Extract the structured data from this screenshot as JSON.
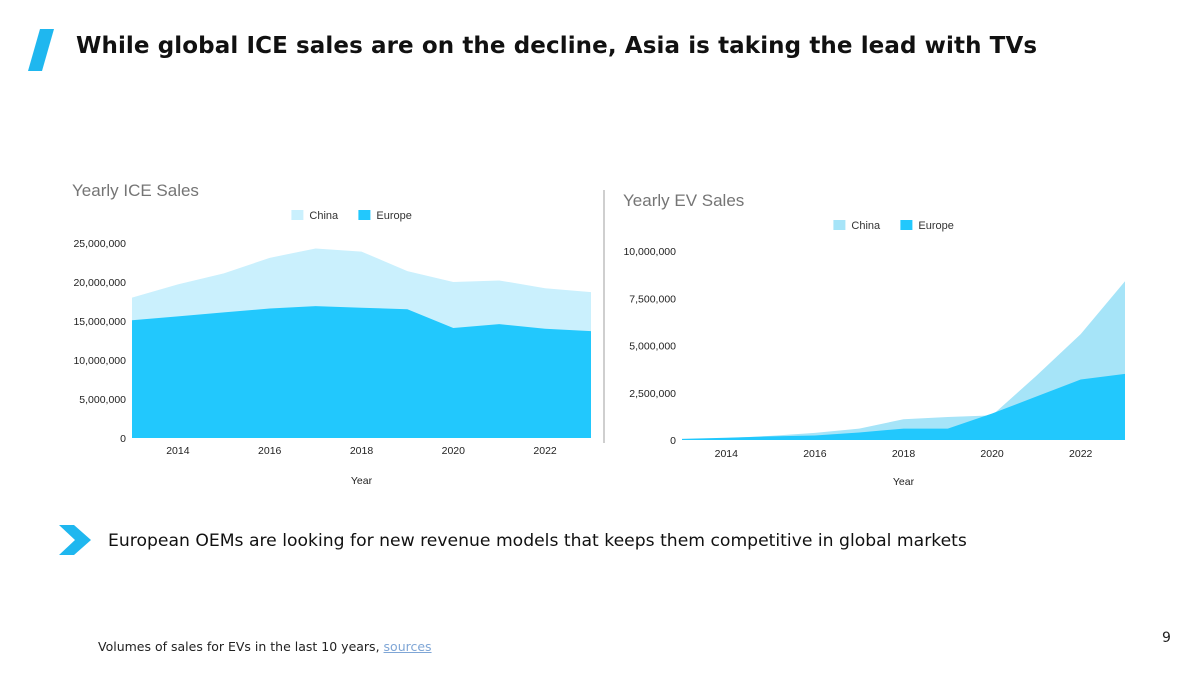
{
  "slide": {
    "title": "While global ICE sales are on the decline, Asia is taking the lead with TVs",
    "bullet": "European OEMs are looking for new revenue models that keeps them competitive in global markets",
    "footnote_text": "Volumes of sales for EVs in the last 10 years, ",
    "footnote_link": "sources",
    "page_number": "9",
    "accent_color": "#1fb7ef",
    "icons": {
      "title_mark": "slash-mark-icon",
      "bullet": "chevron-right-icon"
    }
  },
  "chart_data": [
    {
      "type": "area",
      "stacked": false,
      "title": "Yearly ICE Sales",
      "xlabel": "Year",
      "ylabel": "",
      "x": [
        2013,
        2014,
        2015,
        2016,
        2017,
        2018,
        2019,
        2020,
        2021,
        2022,
        2023
      ],
      "xticks": [
        "2014",
        "2016",
        "2018",
        "2020",
        "2022"
      ],
      "ylim": [
        0,
        25000000
      ],
      "yticks": [
        "0",
        "5,000,000",
        "10,000,000",
        "15,000,000",
        "20,000,000",
        "25,000,000"
      ],
      "legend_position": "top-center",
      "grid": false,
      "series": [
        {
          "name": "China",
          "color": "#caf0fd",
          "values": [
            18000000,
            19700000,
            21100000,
            23100000,
            24300000,
            23900000,
            21400000,
            20000000,
            20200000,
            19200000,
            18700000
          ]
        },
        {
          "name": "Europe",
          "color": "#22c8fd",
          "values": [
            15100000,
            15600000,
            16100000,
            16600000,
            16900000,
            16700000,
            16500000,
            14100000,
            14600000,
            14000000,
            13700000
          ]
        }
      ]
    },
    {
      "type": "area",
      "stacked": false,
      "title": "Yearly EV Sales",
      "xlabel": "Year",
      "ylabel": "",
      "x": [
        2013,
        2014,
        2015,
        2016,
        2017,
        2018,
        2019,
        2020,
        2021,
        2022,
        2023
      ],
      "xticks": [
        "2014",
        "2016",
        "2018",
        "2020",
        "2022"
      ],
      "ylim": [
        0,
        10000000
      ],
      "yticks": [
        "0",
        "2,500,000",
        "5,000,000",
        "7,500,000",
        "10,000,000"
      ],
      "legend_position": "top-center",
      "grid": false,
      "series": [
        {
          "name": "China",
          "color": "#a6e4f8",
          "values": [
            40000,
            100000,
            220000,
            380000,
            600000,
            1100000,
            1220000,
            1300000,
            3400000,
            5600000,
            8400000
          ]
        },
        {
          "name": "Europe",
          "color": "#22c8fd",
          "values": [
            60000,
            120000,
            190000,
            240000,
            400000,
            600000,
            600000,
            1400000,
            2300000,
            3200000,
            3500000
          ]
        }
      ]
    }
  ]
}
